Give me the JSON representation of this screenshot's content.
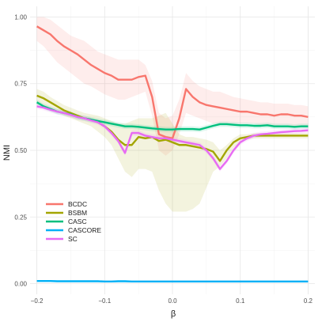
{
  "chart_data": {
    "type": "line",
    "xlabel": "β",
    "ylabel": "NMI",
    "xlim": [
      -0.21,
      0.21
    ],
    "ylim": [
      -0.04,
      1.04
    ],
    "xticks": [
      -0.2,
      -0.1,
      0.0,
      0.1,
      0.2
    ],
    "xtick_labels": [
      "−0.2",
      "−0.1",
      "0.0",
      "0.1",
      "0.2"
    ],
    "yticks": [
      0.0,
      0.25,
      0.5,
      0.75,
      1.0
    ],
    "ytick_labels": [
      "0.00",
      "0.25",
      "0.50",
      "0.75",
      "1.00"
    ],
    "grid": true,
    "legend_position": "left",
    "x": [
      -0.2,
      -0.19,
      -0.18,
      -0.17,
      -0.16,
      -0.15,
      -0.14,
      -0.13,
      -0.12,
      -0.11,
      -0.1,
      -0.09,
      -0.08,
      -0.07,
      -0.06,
      -0.05,
      -0.04,
      -0.03,
      -0.02,
      -0.01,
      0.0,
      0.01,
      0.02,
      0.03,
      0.04,
      0.05,
      0.06,
      0.07,
      0.08,
      0.09,
      0.1,
      0.11,
      0.12,
      0.13,
      0.14,
      0.15,
      0.16,
      0.17,
      0.18,
      0.19,
      0.2
    ],
    "series": [
      {
        "name": "BCDC",
        "color": "#F8766D",
        "values": [
          0.965,
          0.95,
          0.935,
          0.91,
          0.89,
          0.875,
          0.86,
          0.84,
          0.82,
          0.805,
          0.79,
          0.78,
          0.765,
          0.765,
          0.765,
          0.775,
          0.78,
          0.7,
          0.56,
          0.55,
          0.545,
          0.62,
          0.73,
          0.7,
          0.68,
          0.67,
          0.665,
          0.66,
          0.655,
          0.65,
          0.645,
          0.645,
          0.64,
          0.635,
          0.635,
          0.63,
          0.635,
          0.635,
          0.63,
          0.63,
          0.625
        ],
        "band_lower": [
          0.91,
          0.89,
          0.86,
          0.83,
          0.81,
          0.79,
          0.77,
          0.75,
          0.74,
          0.725,
          0.71,
          0.7,
          0.69,
          0.69,
          0.7,
          0.71,
          0.72,
          0.63,
          0.5,
          0.48,
          0.5,
          0.56,
          0.64,
          0.63,
          0.62,
          0.61,
          0.6,
          0.6,
          0.6,
          0.6,
          0.6,
          0.6,
          0.6,
          0.595,
          0.595,
          0.59,
          0.595,
          0.595,
          0.59,
          0.59,
          0.585
        ],
        "band_upper": [
          1.0,
          1.0,
          0.99,
          0.97,
          0.95,
          0.93,
          0.92,
          0.91,
          0.89,
          0.87,
          0.86,
          0.85,
          0.84,
          0.84,
          0.84,
          0.84,
          0.82,
          0.76,
          0.64,
          0.62,
          0.63,
          0.69,
          0.79,
          0.76,
          0.74,
          0.73,
          0.72,
          0.72,
          0.71,
          0.7,
          0.695,
          0.69,
          0.685,
          0.68,
          0.68,
          0.675,
          0.675,
          0.675,
          0.67,
          0.67,
          0.665
        ]
      },
      {
        "name": "BSBM",
        "color": "#A3A500",
        "values": [
          0.705,
          0.695,
          0.68,
          0.665,
          0.65,
          0.64,
          0.63,
          0.62,
          0.615,
          0.605,
          0.59,
          0.57,
          0.54,
          0.52,
          0.52,
          0.55,
          0.545,
          0.55,
          0.535,
          0.54,
          0.53,
          0.52,
          0.52,
          0.515,
          0.51,
          0.505,
          0.495,
          0.46,
          0.5,
          0.53,
          0.545,
          0.55,
          0.555,
          0.555,
          0.555,
          0.555,
          0.555,
          0.555,
          0.555,
          0.555,
          0.555
        ],
        "band_lower": [
          0.68,
          0.67,
          0.66,
          0.645,
          0.63,
          0.62,
          0.61,
          0.6,
          0.59,
          0.57,
          0.55,
          0.52,
          0.47,
          0.42,
          0.4,
          0.43,
          0.43,
          0.42,
          0.35,
          0.3,
          0.27,
          0.27,
          0.27,
          0.28,
          0.3,
          0.36,
          0.42,
          0.44,
          0.47,
          0.51,
          0.53,
          0.54,
          0.545,
          0.545,
          0.545,
          0.545,
          0.545,
          0.545,
          0.545,
          0.545,
          0.545
        ],
        "band_upper": [
          0.73,
          0.72,
          0.7,
          0.685,
          0.67,
          0.66,
          0.65,
          0.64,
          0.635,
          0.63,
          0.62,
          0.61,
          0.6,
          0.6,
          0.61,
          0.62,
          0.62,
          0.62,
          0.63,
          0.64,
          0.6,
          0.56,
          0.55,
          0.55,
          0.545,
          0.54,
          0.53,
          0.5,
          0.52,
          0.545,
          0.56,
          0.56,
          0.565,
          0.565,
          0.565,
          0.565,
          0.565,
          0.565,
          0.565,
          0.565,
          0.565
        ]
      },
      {
        "name": "CASC",
        "color": "#00BF7D",
        "values": [
          0.68,
          0.665,
          0.655,
          0.645,
          0.64,
          0.635,
          0.625,
          0.62,
          0.615,
          0.61,
          0.605,
          0.6,
          0.595,
          0.59,
          0.59,
          0.588,
          0.585,
          0.582,
          0.58,
          0.578,
          0.578,
          0.58,
          0.58,
          0.58,
          0.578,
          0.585,
          0.592,
          0.598,
          0.598,
          0.596,
          0.594,
          0.594,
          0.592,
          0.592,
          0.594,
          0.59,
          0.59,
          0.59,
          0.588,
          0.59,
          0.59
        ],
        "band_lower": [
          0.67,
          0.655,
          0.645,
          0.635,
          0.63,
          0.625,
          0.615,
          0.61,
          0.605,
          0.6,
          0.595,
          0.59,
          0.585,
          0.58,
          0.58,
          0.578,
          0.575,
          0.572,
          0.57,
          0.568,
          0.568,
          0.57,
          0.57,
          0.57,
          0.568,
          0.575,
          0.582,
          0.588,
          0.588,
          0.586,
          0.584,
          0.584,
          0.582,
          0.582,
          0.584,
          0.58,
          0.58,
          0.58,
          0.578,
          0.58,
          0.58
        ],
        "band_upper": [
          0.69,
          0.675,
          0.665,
          0.655,
          0.65,
          0.645,
          0.635,
          0.63,
          0.625,
          0.62,
          0.615,
          0.61,
          0.605,
          0.6,
          0.6,
          0.598,
          0.595,
          0.592,
          0.59,
          0.588,
          0.588,
          0.59,
          0.59,
          0.59,
          0.588,
          0.595,
          0.602,
          0.608,
          0.608,
          0.606,
          0.604,
          0.604,
          0.602,
          0.602,
          0.604,
          0.6,
          0.6,
          0.6,
          0.598,
          0.6,
          0.6
        ]
      },
      {
        "name": "CASCORE",
        "color": "#00B0F6",
        "values": [
          0.01,
          0.01,
          0.01,
          0.009,
          0.009,
          0.009,
          0.009,
          0.009,
          0.009,
          0.009,
          0.008,
          0.008,
          0.009,
          0.009,
          0.008,
          0.008,
          0.008,
          0.008,
          0.008,
          0.008,
          0.008,
          0.008,
          0.008,
          0.008,
          0.008,
          0.008,
          0.008,
          0.008,
          0.008,
          0.008,
          0.008,
          0.008,
          0.008,
          0.008,
          0.008,
          0.008,
          0.008,
          0.008,
          0.008,
          0.008,
          0.008
        ],
        "band_lower": [
          0.007,
          0.007,
          0.007,
          0.006,
          0.006,
          0.006,
          0.006,
          0.006,
          0.006,
          0.006,
          0.005,
          0.005,
          0.006,
          0.006,
          0.005,
          0.005,
          0.005,
          0.005,
          0.005,
          0.005,
          0.005,
          0.005,
          0.005,
          0.005,
          0.005,
          0.005,
          0.005,
          0.005,
          0.005,
          0.005,
          0.005,
          0.005,
          0.005,
          0.005,
          0.005,
          0.005,
          0.005,
          0.005,
          0.005,
          0.005,
          0.005
        ],
        "band_upper": [
          0.013,
          0.013,
          0.013,
          0.012,
          0.012,
          0.012,
          0.012,
          0.012,
          0.012,
          0.012,
          0.011,
          0.011,
          0.012,
          0.012,
          0.011,
          0.011,
          0.011,
          0.011,
          0.011,
          0.011,
          0.011,
          0.011,
          0.011,
          0.011,
          0.011,
          0.011,
          0.011,
          0.011,
          0.011,
          0.011,
          0.011,
          0.011,
          0.011,
          0.011,
          0.011,
          0.011,
          0.011,
          0.011,
          0.011,
          0.011,
          0.011
        ]
      },
      {
        "name": "SC",
        "color": "#E76BF3",
        "values": [
          0.665,
          0.66,
          0.652,
          0.645,
          0.64,
          0.633,
          0.625,
          0.62,
          0.612,
          0.605,
          0.59,
          0.565,
          0.535,
          0.49,
          0.565,
          0.565,
          0.555,
          0.55,
          0.545,
          0.545,
          0.54,
          0.535,
          0.53,
          0.525,
          0.52,
          0.5,
          0.47,
          0.43,
          0.46,
          0.5,
          0.53,
          0.545,
          0.555,
          0.56,
          0.562,
          0.565,
          0.568,
          0.57,
          0.572,
          0.573,
          0.575
        ],
        "band_lower": [
          0.655,
          0.65,
          0.642,
          0.635,
          0.63,
          0.623,
          0.615,
          0.61,
          0.602,
          0.595,
          0.58,
          0.555,
          0.525,
          0.48,
          0.555,
          0.555,
          0.545,
          0.54,
          0.535,
          0.535,
          0.53,
          0.525,
          0.52,
          0.515,
          0.51,
          0.49,
          0.46,
          0.42,
          0.45,
          0.49,
          0.52,
          0.535,
          0.545,
          0.55,
          0.552,
          0.555,
          0.558,
          0.56,
          0.562,
          0.563,
          0.565
        ],
        "band_upper": [
          0.675,
          0.67,
          0.662,
          0.655,
          0.65,
          0.643,
          0.635,
          0.63,
          0.622,
          0.615,
          0.6,
          0.575,
          0.545,
          0.5,
          0.575,
          0.575,
          0.565,
          0.56,
          0.555,
          0.555,
          0.55,
          0.545,
          0.54,
          0.535,
          0.53,
          0.51,
          0.48,
          0.44,
          0.47,
          0.51,
          0.54,
          0.555,
          0.565,
          0.57,
          0.572,
          0.575,
          0.578,
          0.58,
          0.582,
          0.583,
          0.585
        ]
      }
    ]
  }
}
